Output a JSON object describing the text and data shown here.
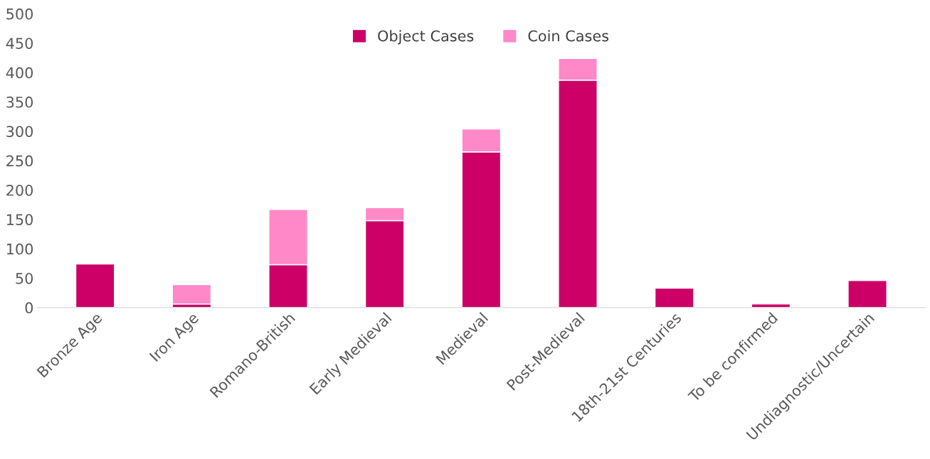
{
  "chart_data": {
    "type": "bar",
    "stacked": true,
    "categories": [
      "Bronze Age",
      "Iron Age",
      "Romano-British",
      "Early Medieval",
      "Medieval",
      "Post-Medieval",
      "18th-21st Centuries",
      "To be confirmed",
      "Undiagnostic/Uncertain"
    ],
    "series": [
      {
        "name": "Object Cases",
        "color": "#cc0066",
        "values": [
          74,
          6,
          73,
          148,
          265,
          387,
          33,
          6,
          46
        ]
      },
      {
        "name": "Coin Cases",
        "color": "#ff88c8",
        "values": [
          null,
          33,
          94,
          22,
          39,
          37,
          null,
          null,
          null
        ]
      }
    ],
    "ylim": [
      0,
      500
    ],
    "yticks": [
      0,
      50,
      100,
      150,
      200,
      250,
      300,
      350,
      400,
      450,
      500
    ],
    "grid": false,
    "legend": "top"
  }
}
